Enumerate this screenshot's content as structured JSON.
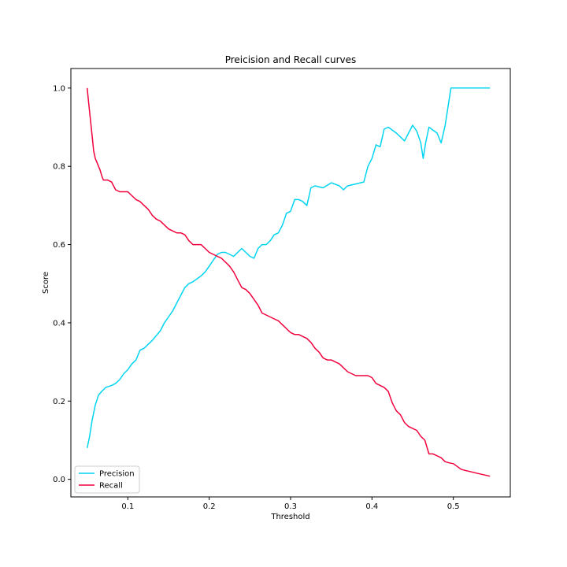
{
  "chart_data": {
    "type": "line",
    "title": "Preicision and Recall curves",
    "xlabel": "Threshold",
    "ylabel": "Score",
    "xlim": [
      0.03,
      0.57
    ],
    "ylim": [
      -0.045,
      1.05
    ],
    "xticks": [
      {
        "value": 0.1,
        "label": "0.1"
      },
      {
        "value": 0.2,
        "label": "0.2"
      },
      {
        "value": 0.3,
        "label": "0.3"
      },
      {
        "value": 0.4,
        "label": "0.4"
      },
      {
        "value": 0.5,
        "label": "0.5"
      }
    ],
    "yticks": [
      {
        "value": 0.0,
        "label": "0.0"
      },
      {
        "value": 0.2,
        "label": "0.2"
      },
      {
        "value": 0.4,
        "label": "0.4"
      },
      {
        "value": 0.6,
        "label": "0.6"
      },
      {
        "value": 0.8,
        "label": "0.8"
      },
      {
        "value": 1.0,
        "label": "1.0"
      }
    ],
    "grid": false,
    "legend": "lower-left",
    "series": [
      {
        "name": "Precision",
        "color": "#00d4f0",
        "x": [
          0.05,
          0.053,
          0.056,
          0.06,
          0.064,
          0.068,
          0.073,
          0.08,
          0.085,
          0.09,
          0.095,
          0.1,
          0.105,
          0.11,
          0.115,
          0.12,
          0.13,
          0.14,
          0.145,
          0.15,
          0.155,
          0.16,
          0.165,
          0.17,
          0.175,
          0.18,
          0.19,
          0.195,
          0.2,
          0.205,
          0.21,
          0.215,
          0.22,
          0.23,
          0.235,
          0.24,
          0.245,
          0.25,
          0.255,
          0.26,
          0.265,
          0.27,
          0.275,
          0.28,
          0.285,
          0.29,
          0.295,
          0.3,
          0.305,
          0.31,
          0.315,
          0.32,
          0.325,
          0.33,
          0.34,
          0.35,
          0.36,
          0.365,
          0.37,
          0.38,
          0.39,
          0.395,
          0.4,
          0.405,
          0.41,
          0.415,
          0.42,
          0.43,
          0.435,
          0.44,
          0.45,
          0.455,
          0.46,
          0.463,
          0.466,
          0.47,
          0.48,
          0.485,
          0.49,
          0.497,
          0.51,
          0.53,
          0.545
        ],
        "values": [
          0.08,
          0.11,
          0.15,
          0.19,
          0.215,
          0.225,
          0.235,
          0.24,
          0.245,
          0.255,
          0.27,
          0.28,
          0.295,
          0.305,
          0.33,
          0.335,
          0.355,
          0.38,
          0.4,
          0.415,
          0.43,
          0.45,
          0.47,
          0.49,
          0.5,
          0.505,
          0.52,
          0.53,
          0.545,
          0.56,
          0.575,
          0.58,
          0.58,
          0.57,
          0.58,
          0.59,
          0.58,
          0.57,
          0.565,
          0.59,
          0.6,
          0.6,
          0.61,
          0.625,
          0.63,
          0.65,
          0.68,
          0.685,
          0.715,
          0.715,
          0.71,
          0.7,
          0.745,
          0.75,
          0.745,
          0.758,
          0.75,
          0.74,
          0.75,
          0.755,
          0.76,
          0.8,
          0.82,
          0.855,
          0.85,
          0.895,
          0.9,
          0.885,
          0.875,
          0.865,
          0.905,
          0.89,
          0.86,
          0.82,
          0.86,
          0.9,
          0.885,
          0.86,
          0.905,
          1.0,
          1.0,
          1.0,
          1.0
        ]
      },
      {
        "name": "Recall",
        "color": "#f0003c",
        "x": [
          0.05,
          0.052,
          0.054,
          0.056,
          0.058,
          0.06,
          0.062,
          0.064,
          0.066,
          0.068,
          0.07,
          0.072,
          0.075,
          0.08,
          0.085,
          0.09,
          0.095,
          0.1,
          0.105,
          0.11,
          0.115,
          0.12,
          0.125,
          0.13,
          0.135,
          0.14,
          0.145,
          0.15,
          0.155,
          0.16,
          0.165,
          0.17,
          0.175,
          0.18,
          0.185,
          0.19,
          0.195,
          0.2,
          0.205,
          0.21,
          0.215,
          0.22,
          0.225,
          0.23,
          0.235,
          0.24,
          0.245,
          0.25,
          0.255,
          0.26,
          0.265,
          0.27,
          0.275,
          0.28,
          0.285,
          0.29,
          0.295,
          0.3,
          0.305,
          0.31,
          0.315,
          0.32,
          0.325,
          0.33,
          0.335,
          0.34,
          0.345,
          0.35,
          0.355,
          0.36,
          0.365,
          0.37,
          0.38,
          0.39,
          0.395,
          0.4,
          0.405,
          0.41,
          0.415,
          0.42,
          0.425,
          0.43,
          0.435,
          0.44,
          0.445,
          0.45,
          0.455,
          0.46,
          0.465,
          0.47,
          0.475,
          0.48,
          0.485,
          0.49,
          0.495,
          0.5,
          0.51,
          0.52,
          0.53,
          0.545
        ],
        "values": [
          1.0,
          0.96,
          0.92,
          0.88,
          0.84,
          0.82,
          0.81,
          0.8,
          0.79,
          0.775,
          0.765,
          0.765,
          0.765,
          0.76,
          0.74,
          0.735,
          0.735,
          0.735,
          0.725,
          0.715,
          0.71,
          0.7,
          0.69,
          0.675,
          0.665,
          0.66,
          0.65,
          0.64,
          0.635,
          0.63,
          0.63,
          0.625,
          0.61,
          0.6,
          0.6,
          0.6,
          0.59,
          0.58,
          0.575,
          0.57,
          0.565,
          0.555,
          0.545,
          0.53,
          0.51,
          0.49,
          0.485,
          0.475,
          0.46,
          0.445,
          0.425,
          0.42,
          0.415,
          0.41,
          0.405,
          0.395,
          0.385,
          0.375,
          0.37,
          0.37,
          0.365,
          0.36,
          0.35,
          0.335,
          0.325,
          0.31,
          0.305,
          0.305,
          0.3,
          0.295,
          0.285,
          0.275,
          0.265,
          0.265,
          0.265,
          0.26,
          0.245,
          0.24,
          0.235,
          0.225,
          0.195,
          0.175,
          0.165,
          0.145,
          0.135,
          0.13,
          0.125,
          0.11,
          0.1,
          0.065,
          0.065,
          0.06,
          0.055,
          0.045,
          0.042,
          0.04,
          0.025,
          0.02,
          0.015,
          0.008
        ]
      }
    ]
  }
}
